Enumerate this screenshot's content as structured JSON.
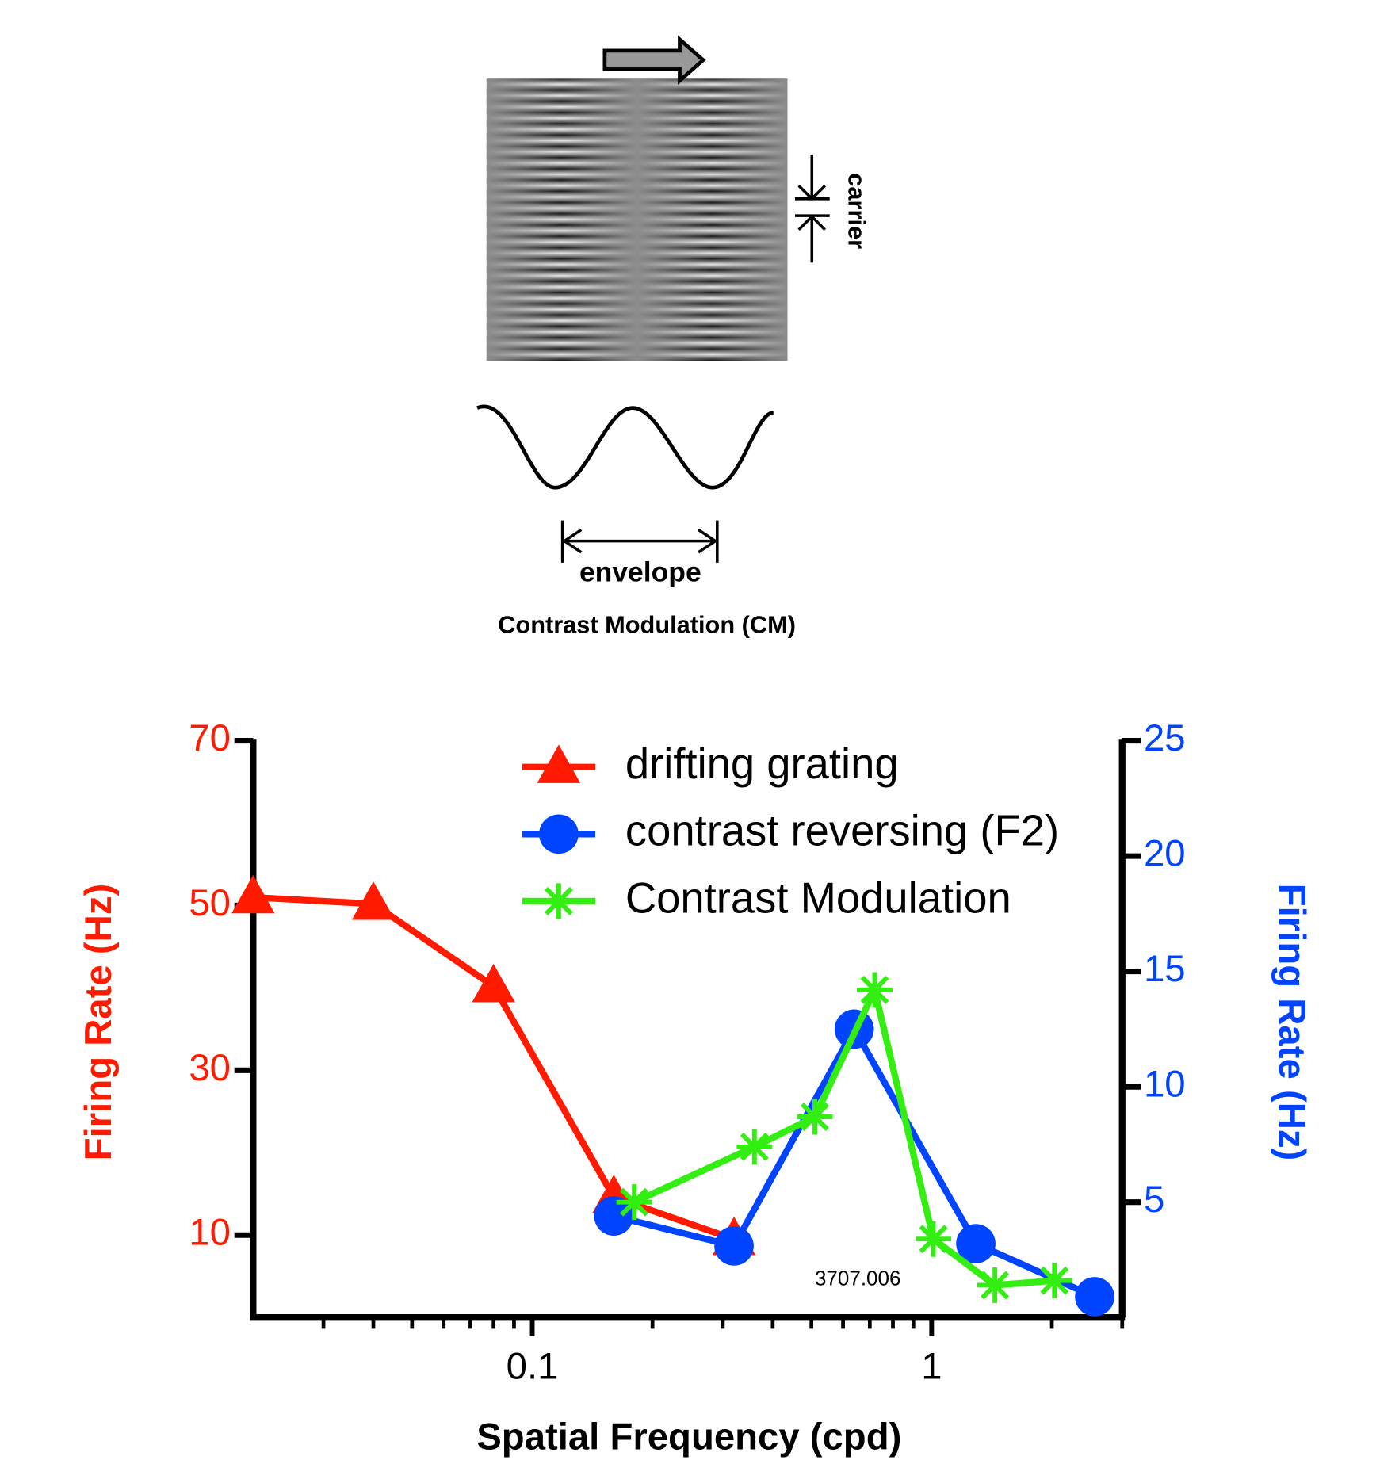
{
  "diagram": {
    "carrier": "carrier",
    "envelope": "envelope",
    "caption": "Contrast Modulation (CM)"
  },
  "chart_data": {
    "type": "line",
    "xlabel": "Spatial Frequency (cpd)",
    "ylabel": "Firing Rate (Hz)",
    "ylabel_color": "#ff1a00",
    "y2label": "Firing Rate (Hz)",
    "y2label_color": "#0044ff",
    "xscale": "log",
    "xlim": [
      0.02,
      3
    ],
    "xticks": [
      0.1,
      1
    ],
    "xticks_minor": [
      0.03,
      0.04,
      0.05,
      0.06,
      0.07,
      0.08,
      0.09,
      0.2,
      0.3,
      0.4,
      0.5,
      0.6,
      0.7,
      0.8,
      0.9,
      2,
      3
    ],
    "ylim": [
      0,
      70
    ],
    "yticks": [
      10,
      30,
      50,
      70
    ],
    "y2lim": [
      0,
      25
    ],
    "y2ticks": [
      5,
      10,
      15,
      20,
      25
    ],
    "legend": "top",
    "annotation": "3707.006",
    "series": [
      {
        "name": "drifting grating",
        "color": "#ff1a00",
        "marker": "triangle",
        "x": [
          0.02,
          0.04,
          0.08,
          0.16,
          0.32
        ],
        "values": [
          51,
          50.2,
          40.2,
          14.6,
          9.5
        ]
      },
      {
        "name": "contrast reversing (F2)",
        "color": "#0044ff",
        "marker": "circle",
        "axis": "y2",
        "x": [
          0.16,
          0.32,
          0.64,
          1.29,
          2.56
        ],
        "values": [
          4.4,
          3.1,
          12.5,
          3.2,
          0.9
        ]
      },
      {
        "name": "Contrast Modulation",
        "color": "#33ee11",
        "marker": "star",
        "axis": "y2",
        "x": [
          0.18,
          0.36,
          0.51,
          0.72,
          1.01,
          1.44,
          2.03
        ],
        "values": [
          5.0,
          7.4,
          8.7,
          14.2,
          3.4,
          1.4,
          1.6
        ]
      }
    ]
  }
}
